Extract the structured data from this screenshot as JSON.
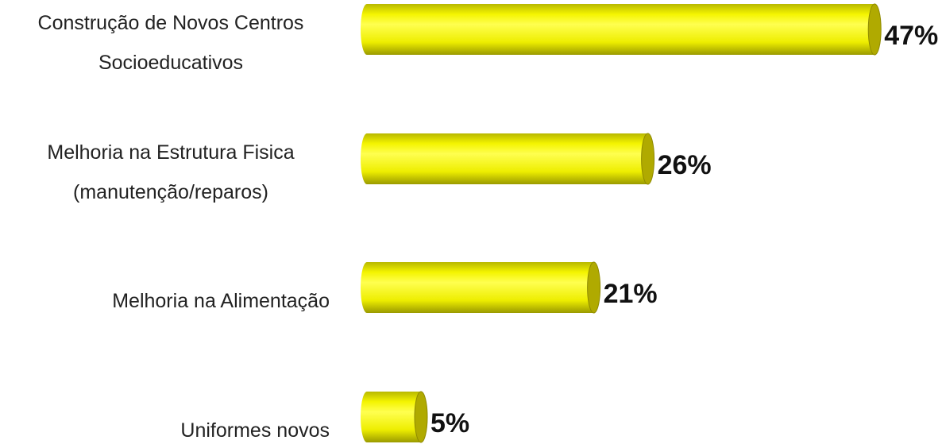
{
  "chart_data": {
    "type": "barh",
    "categories": [
      "Construção de Novos Centros Socioeducativos",
      "Melhoria na Estrutura Fisica (manutenção/reparos)",
      "Melhoria na Alimentação",
      "Uniformes novos"
    ],
    "values": [
      47,
      26,
      21,
      5
    ],
    "value_labels": [
      "47%",
      "26%",
      "21%",
      "5%"
    ],
    "color": "#ffff00"
  }
}
